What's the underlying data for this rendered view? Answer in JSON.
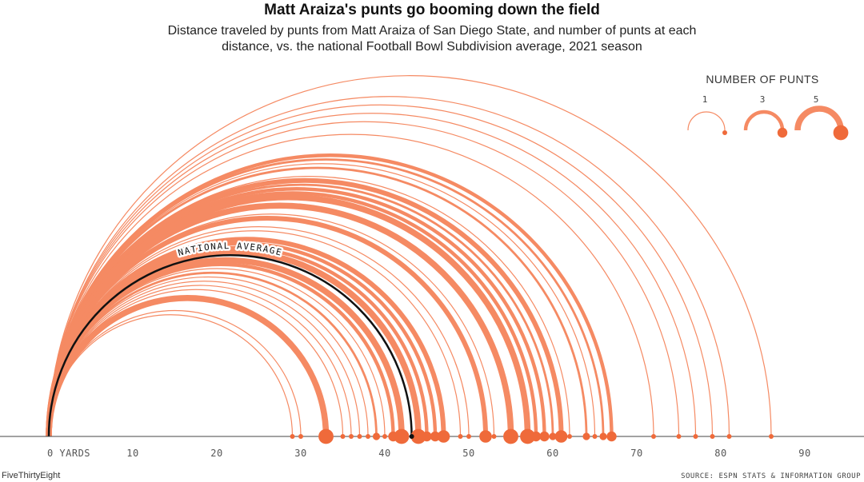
{
  "title": "Matt Araiza's punts go booming down the field",
  "subtitle": "Distance traveled by punts from Matt Araiza of San Diego State, and number of punts at each distance, vs. the national Football Bowl Subdivision average, 2021 season",
  "footer": {
    "brand": "FiveThirtyEight",
    "source": "SOURCE: ESPN STATS & INFORMATION GROUP"
  },
  "colors": {
    "arc": "#f58a63",
    "dot": "#ef6a3a",
    "average": "#111111",
    "baseline": "#444444"
  },
  "legend": {
    "title": "NUMBER OF PUNTS",
    "items": [
      {
        "label": "1",
        "count": 1
      },
      {
        "label": "3",
        "count": 3
      },
      {
        "label": "5",
        "count": 5
      }
    ]
  },
  "chart_data": {
    "type": "arc",
    "x_unit": "yards",
    "xlim": [
      0,
      95
    ],
    "tick_labels": [
      "0 YARDS",
      "10",
      "20",
      "30",
      "40",
      "50",
      "60",
      "70",
      "80",
      "90"
    ],
    "tick_values": [
      0,
      10,
      20,
      30,
      40,
      50,
      60,
      70,
      80,
      90
    ],
    "series": [
      {
        "name": "Matt Araiza",
        "points": [
          {
            "distance": 29,
            "punts": 1
          },
          {
            "distance": 30,
            "punts": 1
          },
          {
            "distance": 33,
            "punts": 5
          },
          {
            "distance": 35,
            "punts": 1
          },
          {
            "distance": 36,
            "punts": 1
          },
          {
            "distance": 37,
            "punts": 1
          },
          {
            "distance": 38,
            "punts": 1
          },
          {
            "distance": 39,
            "punts": 2
          },
          {
            "distance": 40,
            "punts": 1
          },
          {
            "distance": 41,
            "punts": 3
          },
          {
            "distance": 42,
            "punts": 5
          },
          {
            "distance": 44,
            "punts": 5
          },
          {
            "distance": 45,
            "punts": 3
          },
          {
            "distance": 46,
            "punts": 3
          },
          {
            "distance": 47,
            "punts": 4
          },
          {
            "distance": 49,
            "punts": 1
          },
          {
            "distance": 50,
            "punts": 1
          },
          {
            "distance": 52,
            "punts": 4
          },
          {
            "distance": 53,
            "punts": 1
          },
          {
            "distance": 55,
            "punts": 5
          },
          {
            "distance": 57,
            "punts": 5
          },
          {
            "distance": 58,
            "punts": 3
          },
          {
            "distance": 59,
            "punts": 3
          },
          {
            "distance": 60,
            "punts": 2
          },
          {
            "distance": 61,
            "punts": 4
          },
          {
            "distance": 62,
            "punts": 1
          },
          {
            "distance": 64,
            "punts": 2
          },
          {
            "distance": 65,
            "punts": 1
          },
          {
            "distance": 66,
            "punts": 2
          },
          {
            "distance": 67,
            "punts": 3
          },
          {
            "distance": 72,
            "punts": 1
          },
          {
            "distance": 75,
            "punts": 1
          },
          {
            "distance": 77,
            "punts": 1
          },
          {
            "distance": 79,
            "punts": 1
          },
          {
            "distance": 81,
            "punts": 1
          },
          {
            "distance": 86,
            "punts": 1
          }
        ]
      }
    ],
    "reference": {
      "label": "NATIONAL AVERAGE",
      "distance": 43.2
    }
  }
}
